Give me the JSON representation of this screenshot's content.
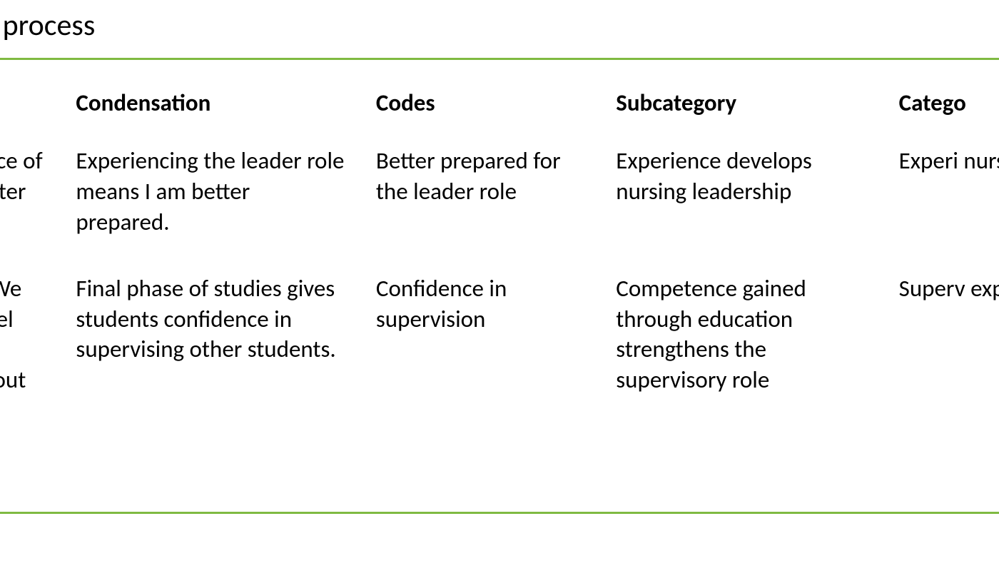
{
  "title": "le of the analysis process",
  "columns": {
    "meaning": "",
    "condensation": "Condensation",
    "codes": "Codes",
    "subcategory": "Subcategory",
    "category": "Catego"
  },
  "rows": [
    {
      "meaning": "t that as a student ence of the leader quipped after such",
      "condensation": "Experiencing the leader role means I am better prepared.",
      "codes": "Better prepared for the leader role",
      "subcategory": "Experience de­velops nursing leadership",
      "category": "Experi nursin ship"
    },
    {
      "meaning": "tudents to be a very We are in the final and feel more secure ners. It's good to get d to find out what we",
      "condensation": "Final phase of studies gives stu­dents confidence in supervising other students.",
      "codes": "Confidence in supervision",
      "subcategory": "Competence gained through education strengthens the supervisory role",
      "category": "Superv experi"
    }
  ],
  "colors": {
    "rule": "#7fba42",
    "text": "#000000",
    "background": "#ffffff"
  }
}
